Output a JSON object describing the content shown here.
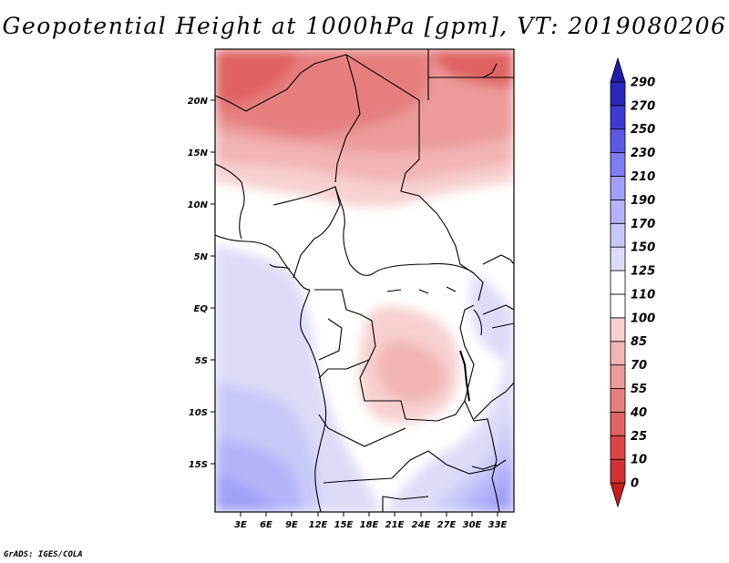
{
  "title": "Geopotential Height at 1000hPa [gpm], VT: 2019080206",
  "credit": "GrADS: IGES/COLA",
  "map": {
    "variable": "Geopotential Height",
    "level": "1000hPa",
    "units": "gpm",
    "valid_time": "2019080206",
    "lat_ticks": [
      "20N",
      "15N",
      "10N",
      "5N",
      "EQ",
      "5S",
      "10S",
      "15S"
    ],
    "lon_ticks": [
      "3E",
      "6E",
      "9E",
      "12E",
      "15E",
      "18E",
      "21E",
      "24E",
      "27E",
      "30E",
      "33E"
    ]
  },
  "colorbar": {
    "levels": [
      "0",
      "10",
      "25",
      "40",
      "55",
      "70",
      "85",
      "100",
      "110",
      "125",
      "150",
      "170",
      "190",
      "210",
      "230",
      "250",
      "270",
      "290"
    ],
    "colors": [
      "#c81e1e",
      "#d23232",
      "#dc4646",
      "#e06262",
      "#e67e7e",
      "#ec9a9a",
      "#f2b4b4",
      "#f8d0d0",
      "#ffffff",
      "#ffffff",
      "#dcdcf8",
      "#c8c8f8",
      "#b4b4fa",
      "#a0a0f8",
      "#7e7ef0",
      "#5a5ae6",
      "#3c3cd2",
      "#2828be",
      "#1e1eaa"
    ]
  }
}
